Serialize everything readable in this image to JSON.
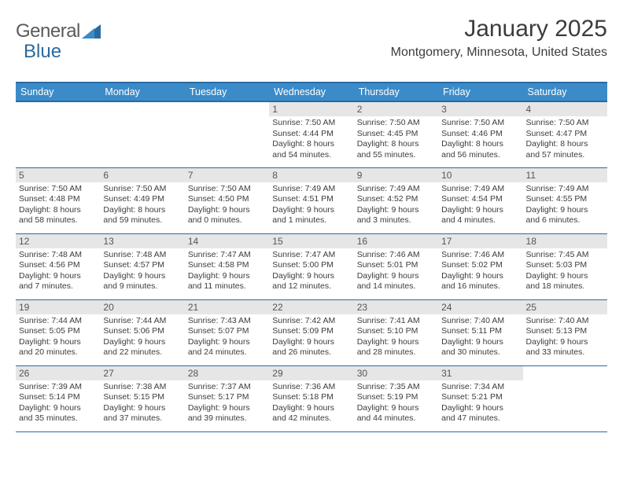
{
  "brand": {
    "name_part1": "General",
    "name_part2": "Blue"
  },
  "title": "January 2025",
  "location": "Montgomery, Minnesota, United States",
  "colors": {
    "header_bg": "#3b8bc9",
    "header_border": "#2a6aa0",
    "daynum_bg": "#e6e6e6",
    "text": "#3c3c3c",
    "logo_blue": "#2a6aa0"
  },
  "weekdays": [
    "Sunday",
    "Monday",
    "Tuesday",
    "Wednesday",
    "Thursday",
    "Friday",
    "Saturday"
  ],
  "leading_blanks": 3,
  "days": [
    {
      "n": "1",
      "sunrise": "7:50 AM",
      "sunset": "4:44 PM",
      "dh": "8",
      "dm": "54"
    },
    {
      "n": "2",
      "sunrise": "7:50 AM",
      "sunset": "4:45 PM",
      "dh": "8",
      "dm": "55"
    },
    {
      "n": "3",
      "sunrise": "7:50 AM",
      "sunset": "4:46 PM",
      "dh": "8",
      "dm": "56"
    },
    {
      "n": "4",
      "sunrise": "7:50 AM",
      "sunset": "4:47 PM",
      "dh": "8",
      "dm": "57"
    },
    {
      "n": "5",
      "sunrise": "7:50 AM",
      "sunset": "4:48 PM",
      "dh": "8",
      "dm": "58"
    },
    {
      "n": "6",
      "sunrise": "7:50 AM",
      "sunset": "4:49 PM",
      "dh": "8",
      "dm": "59"
    },
    {
      "n": "7",
      "sunrise": "7:50 AM",
      "sunset": "4:50 PM",
      "dh": "9",
      "dm": "0"
    },
    {
      "n": "8",
      "sunrise": "7:49 AM",
      "sunset": "4:51 PM",
      "dh": "9",
      "dm": "1"
    },
    {
      "n": "9",
      "sunrise": "7:49 AM",
      "sunset": "4:52 PM",
      "dh": "9",
      "dm": "3"
    },
    {
      "n": "10",
      "sunrise": "7:49 AM",
      "sunset": "4:54 PM",
      "dh": "9",
      "dm": "4"
    },
    {
      "n": "11",
      "sunrise": "7:49 AM",
      "sunset": "4:55 PM",
      "dh": "9",
      "dm": "6"
    },
    {
      "n": "12",
      "sunrise": "7:48 AM",
      "sunset": "4:56 PM",
      "dh": "9",
      "dm": "7"
    },
    {
      "n": "13",
      "sunrise": "7:48 AM",
      "sunset": "4:57 PM",
      "dh": "9",
      "dm": "9"
    },
    {
      "n": "14",
      "sunrise": "7:47 AM",
      "sunset": "4:58 PM",
      "dh": "9",
      "dm": "11"
    },
    {
      "n": "15",
      "sunrise": "7:47 AM",
      "sunset": "5:00 PM",
      "dh": "9",
      "dm": "12"
    },
    {
      "n": "16",
      "sunrise": "7:46 AM",
      "sunset": "5:01 PM",
      "dh": "9",
      "dm": "14"
    },
    {
      "n": "17",
      "sunrise": "7:46 AM",
      "sunset": "5:02 PM",
      "dh": "9",
      "dm": "16"
    },
    {
      "n": "18",
      "sunrise": "7:45 AM",
      "sunset": "5:03 PM",
      "dh": "9",
      "dm": "18"
    },
    {
      "n": "19",
      "sunrise": "7:44 AM",
      "sunset": "5:05 PM",
      "dh": "9",
      "dm": "20"
    },
    {
      "n": "20",
      "sunrise": "7:44 AM",
      "sunset": "5:06 PM",
      "dh": "9",
      "dm": "22"
    },
    {
      "n": "21",
      "sunrise": "7:43 AM",
      "sunset": "5:07 PM",
      "dh": "9",
      "dm": "24"
    },
    {
      "n": "22",
      "sunrise": "7:42 AM",
      "sunset": "5:09 PM",
      "dh": "9",
      "dm": "26"
    },
    {
      "n": "23",
      "sunrise": "7:41 AM",
      "sunset": "5:10 PM",
      "dh": "9",
      "dm": "28"
    },
    {
      "n": "24",
      "sunrise": "7:40 AM",
      "sunset": "5:11 PM",
      "dh": "9",
      "dm": "30"
    },
    {
      "n": "25",
      "sunrise": "7:40 AM",
      "sunset": "5:13 PM",
      "dh": "9",
      "dm": "33"
    },
    {
      "n": "26",
      "sunrise": "7:39 AM",
      "sunset": "5:14 PM",
      "dh": "9",
      "dm": "35"
    },
    {
      "n": "27",
      "sunrise": "7:38 AM",
      "sunset": "5:15 PM",
      "dh": "9",
      "dm": "37"
    },
    {
      "n": "28",
      "sunrise": "7:37 AM",
      "sunset": "5:17 PM",
      "dh": "9",
      "dm": "39"
    },
    {
      "n": "29",
      "sunrise": "7:36 AM",
      "sunset": "5:18 PM",
      "dh": "9",
      "dm": "42"
    },
    {
      "n": "30",
      "sunrise": "7:35 AM",
      "sunset": "5:19 PM",
      "dh": "9",
      "dm": "44"
    },
    {
      "n": "31",
      "sunrise": "7:34 AM",
      "sunset": "5:21 PM",
      "dh": "9",
      "dm": "47"
    }
  ]
}
